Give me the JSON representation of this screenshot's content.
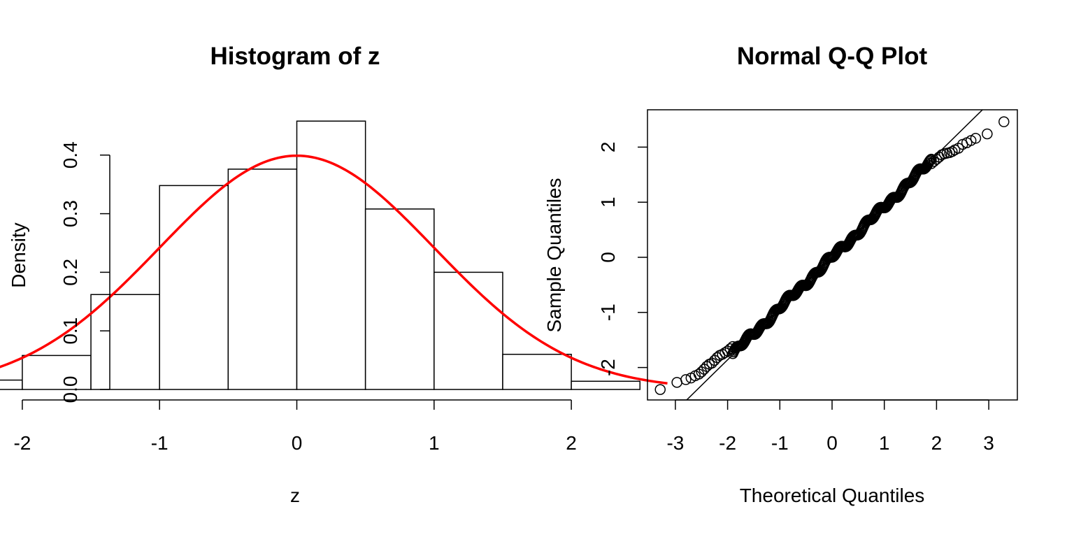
{
  "chart_data": [
    {
      "type": "bar",
      "title": "Histogram of z",
      "xlabel": "z",
      "ylabel": "Density",
      "bins": [
        {
          "from": -2.5,
          "to": -2.0,
          "density": 0.016
        },
        {
          "from": -2.0,
          "to": -1.5,
          "density": 0.058
        },
        {
          "from": -1.5,
          "to": -1.0,
          "density": 0.162
        },
        {
          "from": -1.0,
          "to": -0.5,
          "density": 0.348
        },
        {
          "from": -0.5,
          "to": 0.0,
          "density": 0.376
        },
        {
          "from": 0.0,
          "to": 0.5,
          "density": 0.458
        },
        {
          "from": 0.5,
          "to": 1.0,
          "density": 0.308
        },
        {
          "from": 1.0,
          "to": 1.5,
          "density": 0.2
        },
        {
          "from": 1.5,
          "to": 2.0,
          "density": 0.06
        },
        {
          "from": 2.0,
          "to": 2.5,
          "density": 0.014
        }
      ],
      "overlay": {
        "type": "normal-density",
        "mean": 0,
        "sd": 1,
        "color": "#ff0000"
      },
      "xlim": [
        -2.7,
        2.7
      ],
      "ylim": [
        0,
        0.458
      ],
      "xticks": [
        "-2",
        "-1",
        "0",
        "1",
        "2"
      ],
      "yticks": [
        "0.0",
        "0.1",
        "0.2",
        "0.3",
        "0.4"
      ]
    },
    {
      "type": "scatter",
      "title": "Normal Q-Q Plot",
      "xlabel": "Theoretical Quantiles",
      "ylabel": "Sample Quantiles",
      "xlim": [
        -3.45,
        3.45
      ],
      "ylim": [
        -2.6,
        2.65
      ],
      "xticks": [
        "-3",
        "-2",
        "-1",
        "0",
        "1",
        "2",
        "3"
      ],
      "yticks": [
        "-2",
        "-1",
        "0",
        "1",
        "2"
      ],
      "reference_line": {
        "slope": 0.93,
        "intercept": 0.0
      },
      "points_x": [
        -3.29,
        -2.97,
        -2.8,
        -2.7,
        -2.62,
        -2.55,
        -2.5,
        -2.45,
        -2.4,
        -2.35,
        -2.3,
        -2.25,
        -2.2,
        -2.15,
        -2.1,
        -2.05,
        -2.0,
        -1.95,
        -1.9,
        1.9,
        1.95,
        2.0,
        2.05,
        2.1,
        2.15,
        2.2,
        2.25,
        2.3,
        2.35,
        2.42,
        2.5,
        2.58,
        2.66,
        2.75,
        2.97,
        3.29
      ],
      "points_y": [
        -2.4,
        -2.27,
        -2.22,
        -2.19,
        -2.15,
        -2.12,
        -2.08,
        -2.03,
        -1.98,
        -1.94,
        -1.92,
        -1.87,
        -1.82,
        -1.78,
        -1.76,
        -1.73,
        -1.7,
        -1.66,
        -1.62,
        1.7,
        1.74,
        1.78,
        1.82,
        1.86,
        1.88,
        1.89,
        1.9,
        1.92,
        1.95,
        1.98,
        2.05,
        2.08,
        2.12,
        2.16,
        2.24,
        2.46
      ],
      "dense_band": {
        "x_from": -1.9,
        "x_to": 1.9,
        "slope": 0.92,
        "count": 260
      }
    }
  ]
}
